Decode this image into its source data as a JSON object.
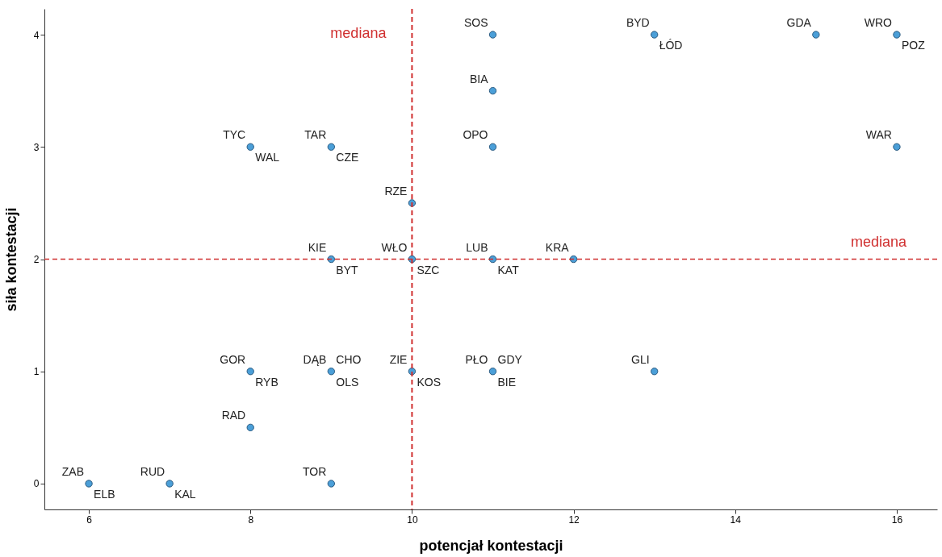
{
  "chart_data": {
    "type": "scatter",
    "xlabel": "potencjał kontestacji",
    "ylabel": "siła kontestacji",
    "x": [
      6,
      7,
      9,
      8,
      8,
      9,
      10,
      11,
      13,
      9,
      10,
      11,
      12,
      10,
      8,
      9,
      11,
      16,
      11,
      11,
      13,
      15,
      16
    ],
    "series": [
      {
        "color": "#4b9fd8",
        "values": [
          0,
          0,
          0,
          0.5,
          1,
          1,
          1,
          1,
          1,
          2,
          2,
          2,
          2,
          2.5,
          3,
          3,
          3,
          3,
          3.5,
          4,
          4,
          4,
          4
        ]
      }
    ],
    "marker": "circle",
    "grid": false,
    "xlim": [
      5.45,
      16.5
    ],
    "xticks": [
      6,
      8,
      10,
      12,
      14,
      16
    ],
    "ylim": [
      -0.23,
      4.23
    ],
    "yticks": [
      0,
      1,
      2,
      3,
      4
    ],
    "ref_lines": [
      {
        "axis": "x",
        "value": 10,
        "label": "mediana",
        "color": "#d03030",
        "line_style": "dashed"
      },
      {
        "axis": "y",
        "value": 2,
        "label": "mediana",
        "color": "#d03030",
        "line_style": "dashed"
      }
    ],
    "annotations": [
      {
        "text": "ZAB",
        "x": 6,
        "y": 0
      },
      {
        "text": "ELB",
        "x": 6,
        "y": 0
      },
      {
        "text": "RUD",
        "x": 7,
        "y": 0
      },
      {
        "text": "KAL",
        "x": 7,
        "y": 0
      },
      {
        "text": "TOR",
        "x": 9,
        "y": 0
      },
      {
        "text": "RAD",
        "x": 8,
        "y": 0.5
      },
      {
        "text": "GOR",
        "x": 8,
        "y": 1
      },
      {
        "text": "RYB",
        "x": 8,
        "y": 1
      },
      {
        "text": "DĄB",
        "x": 9,
        "y": 1
      },
      {
        "text": "OLS",
        "x": 9,
        "y": 1
      },
      {
        "text": "CHO",
        "x": 9,
        "y": 1
      },
      {
        "text": "ZIE",
        "x": 10,
        "y": 1
      },
      {
        "text": "KOS",
        "x": 10,
        "y": 1
      },
      {
        "text": "PŁO",
        "x": 11,
        "y": 1
      },
      {
        "text": "BIE",
        "x": 11,
        "y": 1
      },
      {
        "text": "GDY",
        "x": 11,
        "y": 1
      },
      {
        "text": "GLI",
        "x": 13,
        "y": 1
      },
      {
        "text": "KIE",
        "x": 9,
        "y": 2
      },
      {
        "text": "BYT",
        "x": 9,
        "y": 2
      },
      {
        "text": "WŁO",
        "x": 10,
        "y": 2
      },
      {
        "text": "SZC",
        "x": 10,
        "y": 2
      },
      {
        "text": "LUB",
        "x": 11,
        "y": 2
      },
      {
        "text": "KAT",
        "x": 11,
        "y": 2
      },
      {
        "text": "KRA",
        "x": 12,
        "y": 2
      },
      {
        "text": "RZE",
        "x": 10,
        "y": 2.5
      },
      {
        "text": "TYC",
        "x": 8,
        "y": 3
      },
      {
        "text": "WAL",
        "x": 8,
        "y": 3
      },
      {
        "text": "TAR",
        "x": 9,
        "y": 3
      },
      {
        "text": "CZE",
        "x": 9,
        "y": 3
      },
      {
        "text": "OPO",
        "x": 11,
        "y": 3
      },
      {
        "text": "WAR",
        "x": 16,
        "y": 3
      },
      {
        "text": "BIA",
        "x": 11,
        "y": 3.5
      },
      {
        "text": "SOS",
        "x": 11,
        "y": 4
      },
      {
        "text": "BYD",
        "x": 13,
        "y": 4
      },
      {
        "text": "ŁÓD",
        "x": 13,
        "y": 4
      },
      {
        "text": "GDA",
        "x": 15,
        "y": 4
      },
      {
        "text": "WRO",
        "x": 16,
        "y": 4
      },
      {
        "text": "POZ",
        "x": 16,
        "y": 4
      }
    ]
  }
}
